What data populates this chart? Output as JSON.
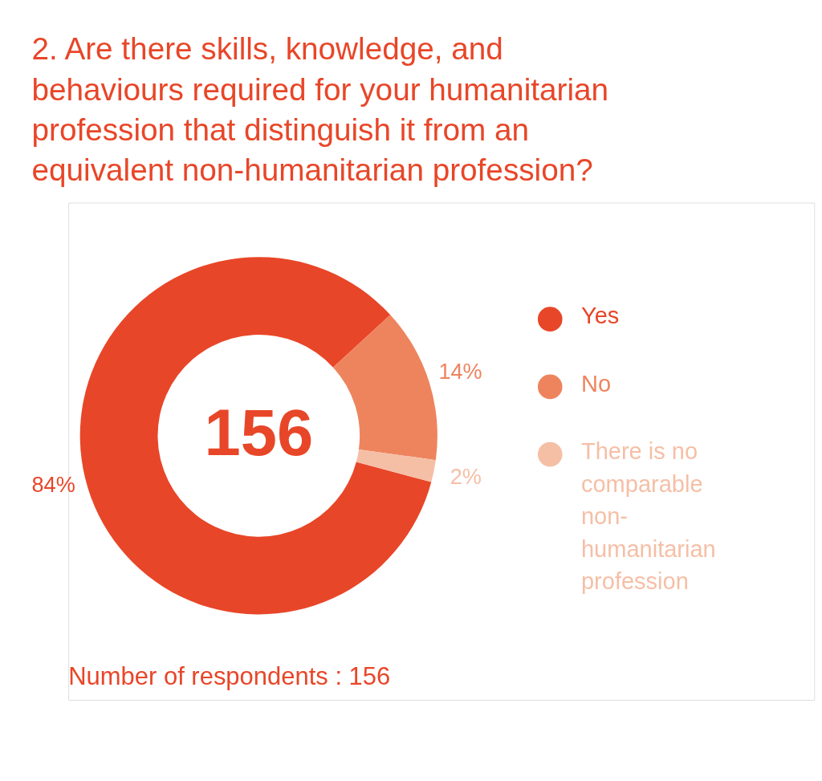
{
  "chart_data": {
    "type": "donut",
    "title": "2. Are there skills, knowledge, and behaviours required for your humanitarian profession that distinguish it from an equivalent non-humanitarian profession?",
    "categories": [
      "Yes",
      "No",
      "There is no comparable non-humanitarian profession"
    ],
    "values": [
      84,
      14,
      2
    ],
    "colors": [
      "#e84628",
      "#ee845e",
      "#f5bfa6"
    ],
    "value_labels": [
      "84%",
      "14%",
      "2%"
    ],
    "legend": "right",
    "annotations": [
      "156",
      "Number of respondents : 156"
    ]
  }
}
